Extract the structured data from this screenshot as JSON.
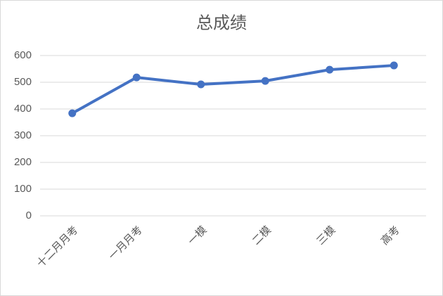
{
  "chart_data": {
    "type": "line",
    "title": "总成绩",
    "categories": [
      "十二月月考",
      "一月月考",
      "一模",
      "二模",
      "三模",
      "高考"
    ],
    "series": [
      {
        "name": "总成绩",
        "color": "#4472c4",
        "values": [
          384,
          518,
          492,
          505,
          547,
          563
        ]
      }
    ],
    "ylim": [
      0,
      600
    ],
    "yticks": [
      0,
      100,
      200,
      300,
      400,
      500,
      600
    ],
    "grid": true
  }
}
